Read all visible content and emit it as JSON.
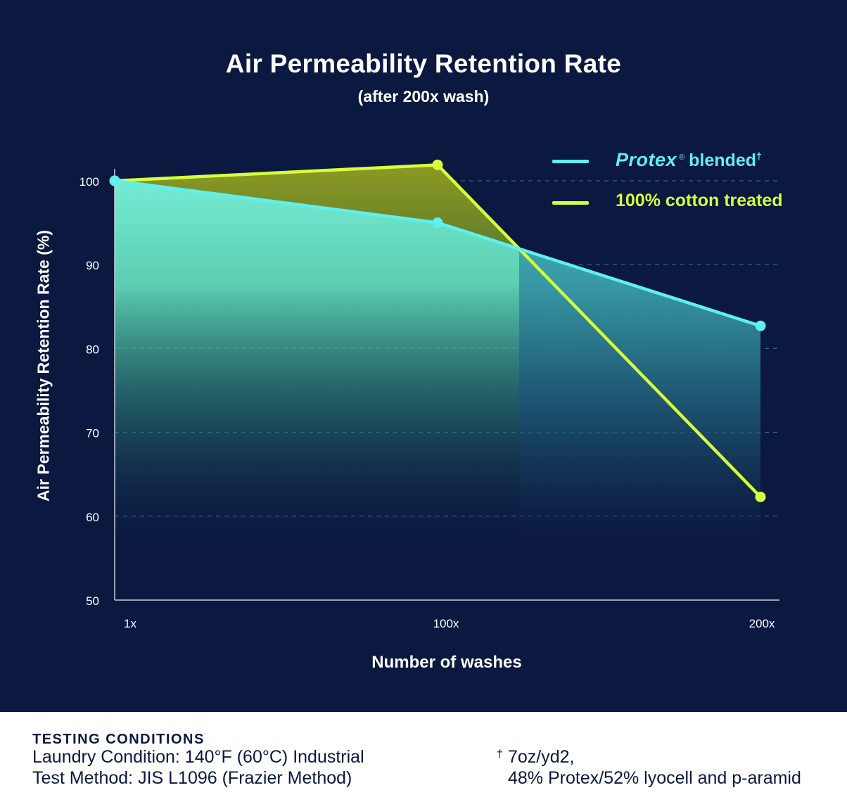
{
  "chart_data": {
    "type": "line",
    "title": "Air Permeability Retention Rate",
    "subtitle": "(after 200x wash)",
    "xlabel": "Number of washes",
    "ylabel": "Air Permeability Retention Rate (%)",
    "categories": [
      "1x",
      "100x",
      "200x"
    ],
    "yticks": [
      50,
      60,
      70,
      80,
      90,
      100
    ],
    "ylim": [
      50,
      100
    ],
    "grid": "horizontal dashed",
    "legend_position": "top-right",
    "series": [
      {
        "brand": "Protex",
        "reg_mark": "®",
        "label": "blended",
        "footnote_mark": "†",
        "color": "#5ff0ee",
        "values": [
          100,
          95,
          82.7
        ]
      },
      {
        "label": "100% cotton treated",
        "color": "#d6ff3c",
        "values": [
          100,
          101.9,
          62.3
        ]
      }
    ]
  },
  "footer": {
    "heading": "TESTING CONDITIONS",
    "line1": "Laundry Condition: 140°F (60°C) Industrial",
    "line2": "Test Method: JIS L1096 (Frazier Method)",
    "note_mark": "†",
    "note1": "7oz/yd2,",
    "note2": "48% Protex/52% lyocell and p-aramid"
  }
}
